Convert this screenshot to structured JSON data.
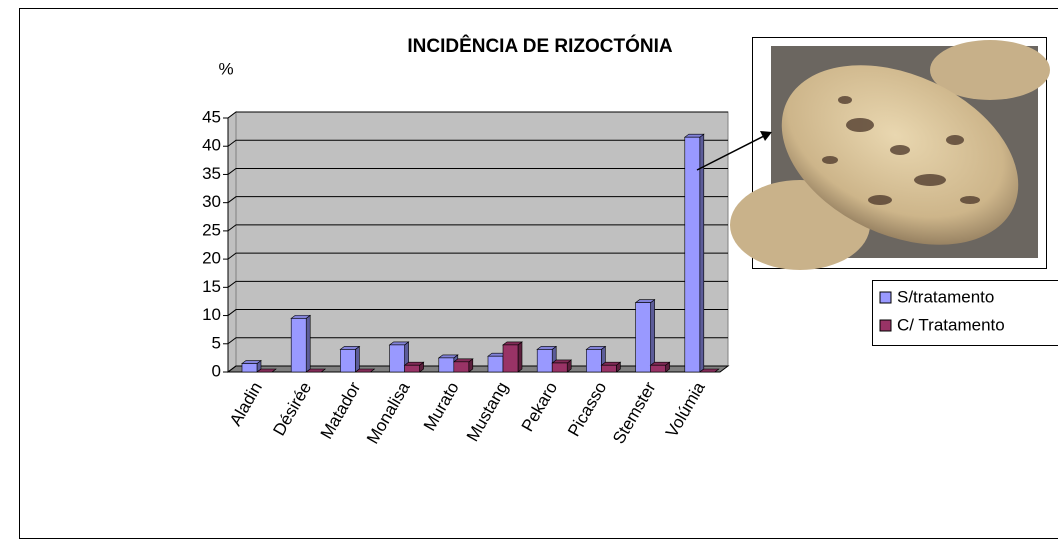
{
  "chart_data": {
    "type": "bar3d",
    "title": "INCIDÊNCIA DE RIZOCTÓNIA",
    "y_label": "%",
    "categories": [
      "Aladin",
      "Désirée",
      "Matador",
      "Monalisa",
      "Murato",
      "Mustang",
      "Pekaro",
      "Picasso",
      "Stemster",
      "Volúmia"
    ],
    "series": [
      {
        "name": "S/tratamento",
        "color": "#9999ff",
        "values": [
          1.5,
          9.5,
          4,
          4.8,
          2.5,
          2.8,
          4,
          4,
          12.3,
          41.6
        ]
      },
      {
        "name": "C/ Tratamento",
        "color": "#993366",
        "values": [
          0,
          0,
          0,
          1.2,
          1.8,
          4.8,
          1.6,
          1.2,
          1.2,
          0
        ]
      }
    ],
    "ylim": [
      0,
      45
    ],
    "yticks": [
      0,
      5,
      10,
      15,
      20,
      25,
      30,
      35,
      40,
      45
    ],
    "grid": true
  }
}
